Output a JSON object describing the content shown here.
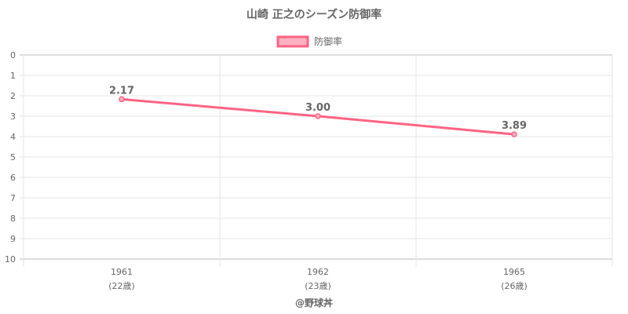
{
  "chart_data": {
    "type": "line",
    "title": "山崎 正之のシーズン防御率",
    "categories": [
      "1961",
      "1962",
      "1965"
    ],
    "category_sublabels": [
      "(22歳)",
      "(23歳)",
      "(26歳)"
    ],
    "series": [
      {
        "name": "防御率",
        "values": [
          2.17,
          3.0,
          3.89
        ],
        "data_labels": [
          "2.17",
          "3.00",
          "3.89"
        ]
      }
    ],
    "ylim": [
      0,
      10
    ],
    "y_reversed": true,
    "yticks": [
      "0",
      "1",
      "2",
      "3",
      "4",
      "5",
      "6",
      "7",
      "8",
      "9",
      "10"
    ],
    "grid": true,
    "legend": "top",
    "colors": {
      "line": "#ff6384",
      "fill": "#ffb1c1"
    },
    "footer": "@野球丼"
  }
}
